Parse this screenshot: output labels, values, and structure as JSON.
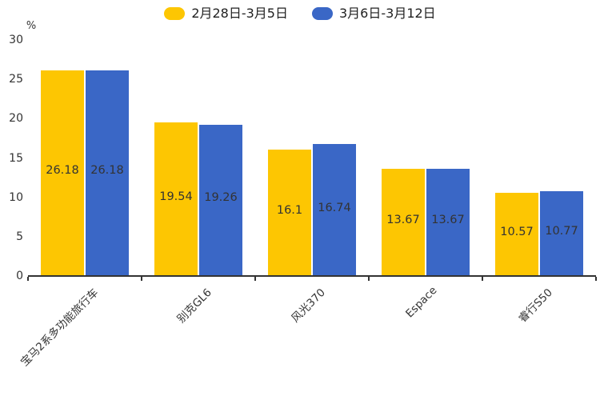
{
  "chart_data": {
    "type": "bar",
    "title": "",
    "unit_label": "%",
    "categories": [
      "宝马2系多功能旅行车",
      "别克GL6",
      "风光370",
      "Espace",
      "睿行S50"
    ],
    "series": [
      {
        "name": "2月28日-3月5日",
        "color": "#FDC602",
        "values": [
          26.18,
          19.54,
          16.1,
          13.67,
          10.57
        ],
        "labels": [
          "26.18",
          "19.54",
          "16.1",
          "13.67",
          "10.57"
        ]
      },
      {
        "name": "3月6日-3月12日",
        "color": "#3A67C6",
        "values": [
          26.18,
          19.26,
          16.74,
          13.67,
          10.77
        ],
        "labels": [
          "26.18",
          "19.26",
          "16.74",
          "13.67",
          "10.77"
        ]
      }
    ],
    "xlabel": "",
    "ylabel": "%",
    "ylim": [
      0,
      30
    ],
    "yticks": [
      0,
      5,
      10,
      15,
      20,
      25,
      30
    ],
    "grid": false,
    "legend_position": "top",
    "xtick_rotation": 45
  },
  "style": {
    "axis_color": "#333333",
    "label_color": "#333333",
    "legend_text_color": "#1f1f1f",
    "background": "#ffffff"
  }
}
